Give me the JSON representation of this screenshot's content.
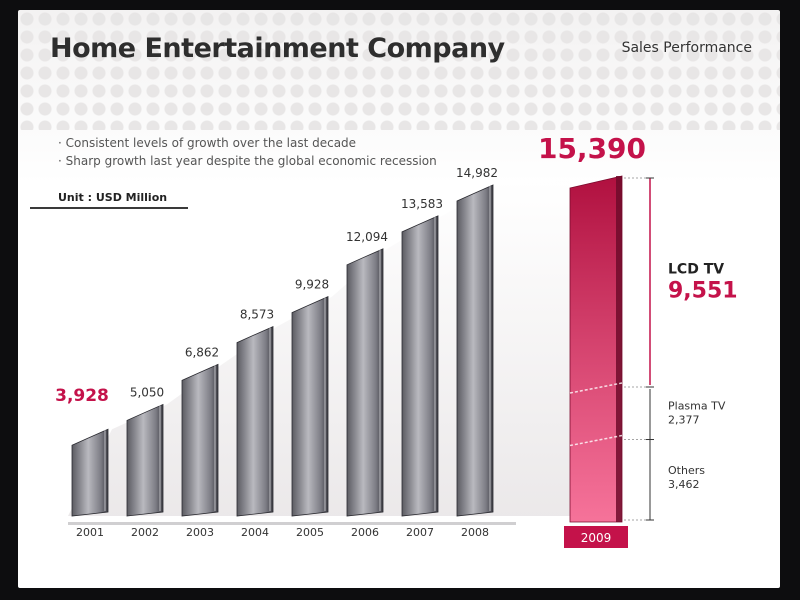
{
  "header": {
    "title": "Home Entertainment Company",
    "subtitle": "Sales Performance"
  },
  "bullets": [
    "Consistent levels of growth over the last decade",
    "Sharp growth last year despite the global economic recession"
  ],
  "unit_label": "Unit : USD Million",
  "colors": {
    "accent": "#c4124a",
    "bar_gray": "#9a9aa0",
    "text_dark": "#2e2e2e"
  },
  "chart_data": {
    "type": "bar",
    "title": "Home Entertainment Company",
    "subtitle": "Sales Performance",
    "unit": "USD Million",
    "categories": [
      "2001",
      "2002",
      "2003",
      "2004",
      "2005",
      "2006",
      "2007",
      "2008",
      "2009"
    ],
    "values": [
      3928,
      5050,
      6862,
      8573,
      9928,
      12094,
      13583,
      14982,
      15390
    ],
    "value_labels": [
      "3,928",
      "5,050",
      "6,862",
      "8,573",
      "9,928",
      "12,094",
      "13,583",
      "14,982",
      "15,390"
    ],
    "highlight_categories": [
      "2001",
      "2009"
    ],
    "breakdown_2009": [
      {
        "label": "LCD TV",
        "value": 9551,
        "value_label": "9,551"
      },
      {
        "label": "Plasma TV",
        "value": 2377,
        "value_label": "2,377"
      },
      {
        "label": "Others",
        "value": 3462,
        "value_label": "3,462"
      }
    ],
    "grid": false,
    "legend": "none"
  }
}
